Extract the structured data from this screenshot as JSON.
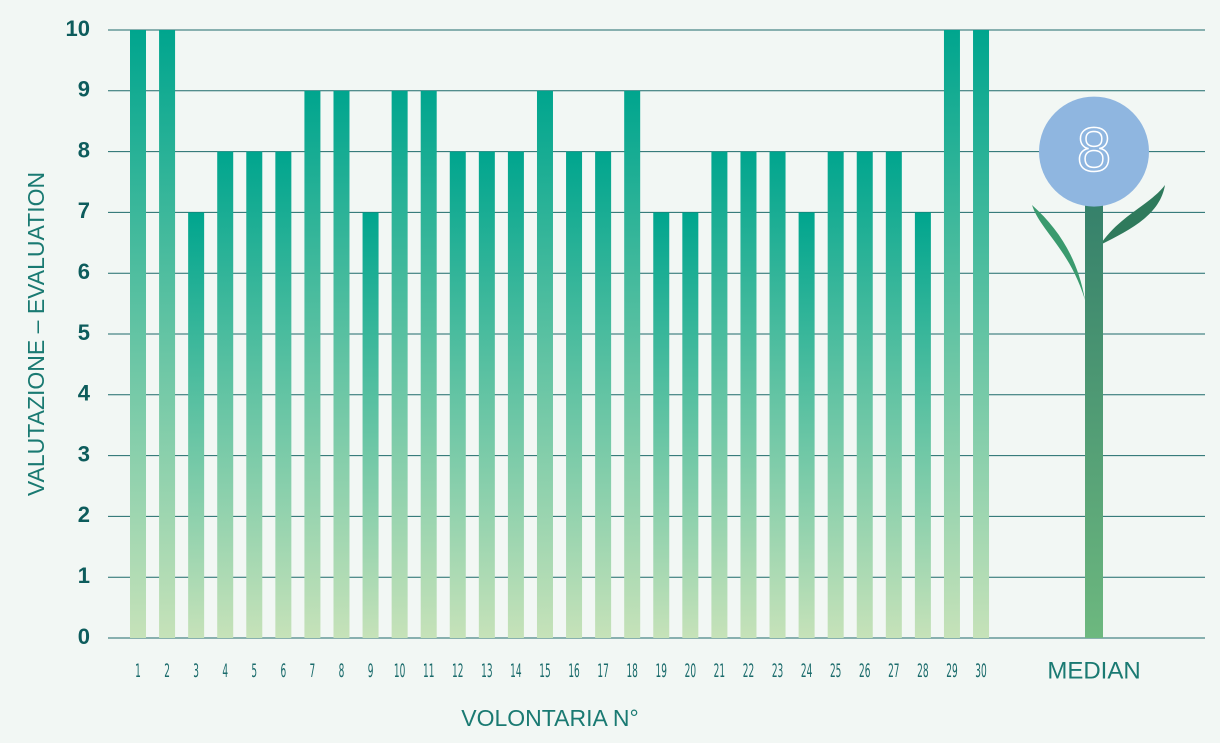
{
  "chart_data": {
    "type": "bar",
    "xlabel": "VOLONTARIA N°",
    "ylabel": "VALUTAZIONE – EVALUATION",
    "categories": [
      "1",
      "2",
      "3",
      "4",
      "5",
      "6",
      "7",
      "8",
      "9",
      "10",
      "11",
      "12",
      "13",
      "14",
      "15",
      "16",
      "17",
      "18",
      "19",
      "20",
      "21",
      "22",
      "23",
      "24",
      "25",
      "26",
      "27",
      "28",
      "29",
      "30"
    ],
    "values": [
      10,
      10,
      7,
      8,
      8,
      8,
      9,
      9,
      7,
      9,
      9,
      8,
      8,
      8,
      9,
      8,
      8,
      9,
      7,
      7,
      8,
      8,
      8,
      7,
      8,
      8,
      8,
      7,
      10,
      10
    ],
    "color_top": "#00a58e",
    "color_bottom": "#c6e2b9",
    "median": {
      "label": "MEDIAN",
      "value": 8,
      "color": "#8fb6e0",
      "stem_color": "#2f7a68"
    },
    "ylim": [
      0,
      10
    ],
    "yticks": [
      0,
      1,
      2,
      3,
      4,
      5,
      6,
      7,
      8,
      9,
      10
    ],
    "grid": true
  }
}
